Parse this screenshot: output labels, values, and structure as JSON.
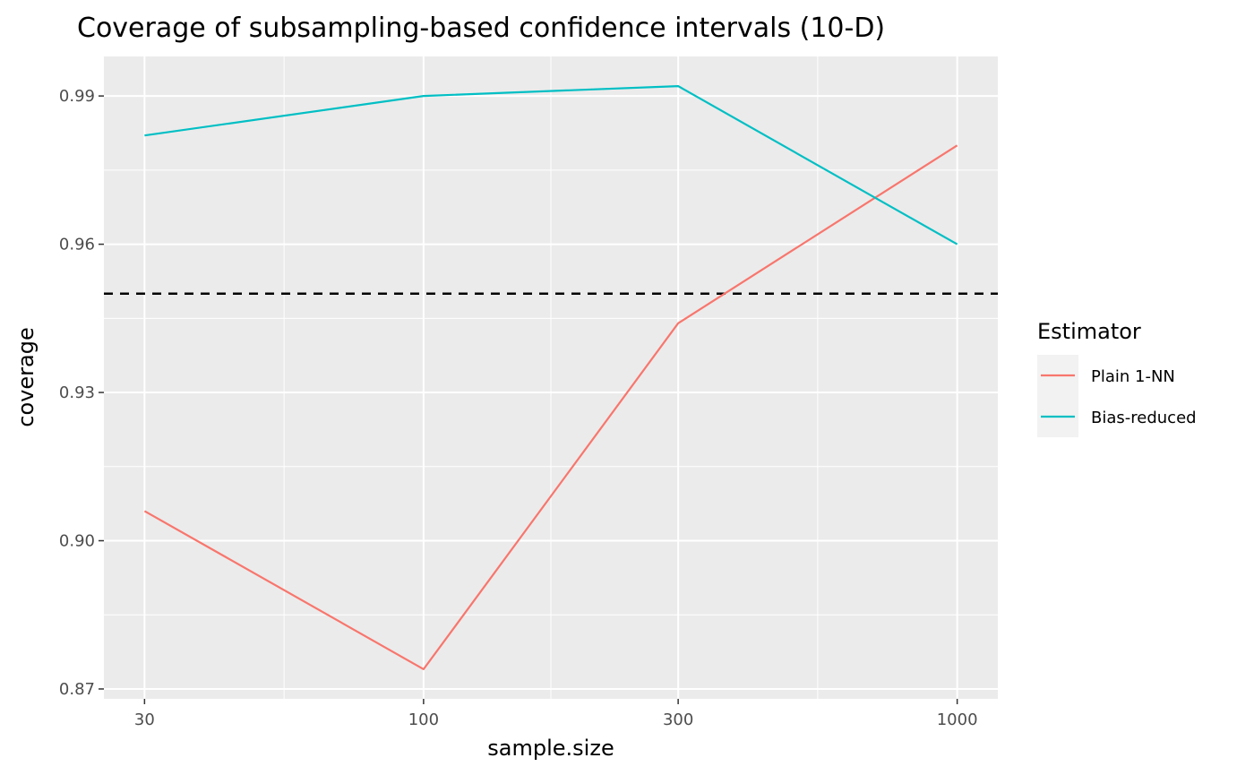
{
  "chart_data": {
    "type": "line",
    "title": "Coverage of subsampling-based confidence intervals (10-D)",
    "xlabel": "sample.size",
    "ylabel": "coverage",
    "x_scale": "log10",
    "x": [
      30,
      100,
      300,
      1000
    ],
    "x_tick_labels": [
      "30",
      "100",
      "300",
      "1000"
    ],
    "y_ticks": [
      0.87,
      0.9,
      0.93,
      0.96,
      0.99
    ],
    "y_tick_labels": [
      "0.87",
      "0.90",
      "0.93",
      "0.96",
      "0.99"
    ],
    "ylim": [
      0.868,
      0.998
    ],
    "grid": true,
    "reference_line": {
      "y": 0.95,
      "style": "dashed",
      "color": "#000000"
    },
    "legend": {
      "title": "Estimator",
      "position": "right"
    },
    "series": [
      {
        "name": "Plain 1-NN",
        "color": "#F8766D",
        "values": [
          0.906,
          0.874,
          0.944,
          0.98
        ]
      },
      {
        "name": "Bias-reduced",
        "color": "#00BFC4",
        "values": [
          0.982,
          0.99,
          0.992,
          0.96
        ]
      }
    ]
  }
}
